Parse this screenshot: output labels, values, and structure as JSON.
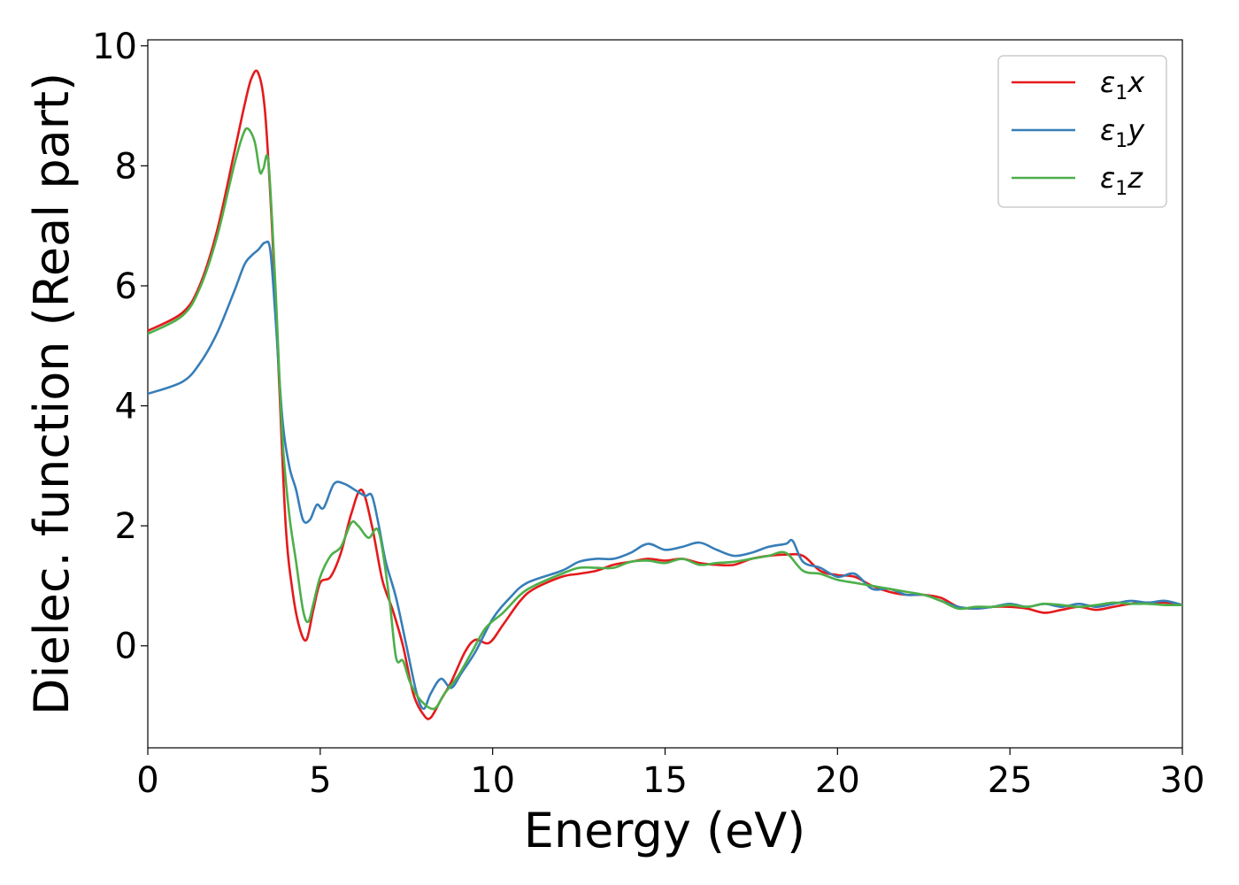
{
  "chart_data": {
    "type": "line",
    "xlabel": "Energy (eV)",
    "ylabel": "Dielec. function (Real part)",
    "xlim": [
      0,
      30
    ],
    "ylim": [
      -1.7,
      10.1
    ],
    "xticks": [
      0,
      5,
      10,
      15,
      20,
      25,
      30
    ],
    "yticks": [
      0,
      2,
      4,
      6,
      8,
      10
    ],
    "grid": false,
    "legend_position": "top-right",
    "series": [
      {
        "name": "ε1x",
        "sym": "ε",
        "sub": "1",
        "axis": "x",
        "color": "#e41a1c",
        "x": [
          0,
          1,
          1.5,
          2,
          2.5,
          2.8,
          3.0,
          3.2,
          3.4,
          3.6,
          3.8,
          4.0,
          4.2,
          4.4,
          4.6,
          4.8,
          5.0,
          5.3,
          5.6,
          5.9,
          6.2,
          6.5,
          6.8,
          7.1,
          7.4,
          7.7,
          8.0,
          8.2,
          8.5,
          8.8,
          9.2,
          9.5,
          9.9,
          10.3,
          10.8,
          11.2,
          12,
          12.5,
          13,
          13.5,
          14,
          14.5,
          15,
          15.5,
          16,
          16.5,
          17,
          17.5,
          18,
          18.5,
          19,
          19.5,
          20,
          20.5,
          21,
          21.5,
          22,
          22.5,
          23,
          23.5,
          24,
          24.5,
          25,
          25.5,
          26,
          26.5,
          27,
          27.5,
          28,
          28.5,
          29,
          29.5,
          30
        ],
        "y": [
          5.25,
          5.55,
          6.0,
          6.9,
          8.2,
          9.0,
          9.45,
          9.55,
          8.9,
          7.0,
          4.5,
          2.0,
          0.9,
          0.3,
          0.1,
          0.6,
          1.05,
          1.15,
          1.55,
          2.2,
          2.6,
          2.0,
          1.1,
          0.6,
          0.0,
          -0.8,
          -1.15,
          -1.2,
          -0.9,
          -0.6,
          -0.1,
          0.1,
          0.05,
          0.35,
          0.75,
          0.95,
          1.15,
          1.2,
          1.25,
          1.35,
          1.4,
          1.45,
          1.42,
          1.45,
          1.38,
          1.35,
          1.35,
          1.45,
          1.5,
          1.52,
          1.5,
          1.25,
          1.18,
          1.15,
          1.0,
          0.9,
          0.85,
          0.85,
          0.8,
          0.65,
          0.62,
          0.65,
          0.65,
          0.62,
          0.55,
          0.6,
          0.65,
          0.6,
          0.65,
          0.7,
          0.72,
          0.72,
          0.68
        ]
      },
      {
        "name": "ε1y",
        "sym": "ε",
        "sub": "1",
        "axis": "y",
        "color": "#377eb8",
        "x": [
          0,
          1,
          1.5,
          2,
          2.5,
          2.8,
          3.0,
          3.2,
          3.4,
          3.55,
          3.7,
          3.9,
          4.1,
          4.3,
          4.5,
          4.7,
          4.9,
          5.1,
          5.4,
          5.7,
          6.0,
          6.3,
          6.5,
          6.7,
          6.9,
          7.2,
          7.5,
          7.8,
          8.0,
          8.2,
          8.5,
          8.8,
          9.1,
          9.5,
          10,
          10.5,
          11,
          12,
          12.5,
          13,
          13.5,
          14,
          14.5,
          15,
          15.5,
          16,
          16.5,
          17,
          17.5,
          18,
          18.5,
          18.7,
          19,
          19.5,
          20,
          20.5,
          21,
          21.5,
          22,
          22.5,
          23,
          23.5,
          24,
          24.5,
          25,
          25.5,
          26,
          26.5,
          27,
          27.5,
          28,
          28.5,
          29,
          29.5,
          30
        ],
        "y": [
          4.2,
          4.4,
          4.7,
          5.2,
          5.9,
          6.35,
          6.5,
          6.6,
          6.72,
          6.6,
          5.5,
          3.8,
          3.0,
          2.6,
          2.1,
          2.1,
          2.35,
          2.3,
          2.7,
          2.7,
          2.6,
          2.5,
          2.5,
          2.0,
          1.4,
          0.8,
          0.0,
          -0.8,
          -1.05,
          -0.8,
          -0.55,
          -0.7,
          -0.45,
          -0.1,
          0.45,
          0.8,
          1.05,
          1.25,
          1.4,
          1.45,
          1.45,
          1.55,
          1.7,
          1.6,
          1.65,
          1.72,
          1.6,
          1.5,
          1.55,
          1.65,
          1.7,
          1.75,
          1.4,
          1.3,
          1.15,
          1.2,
          0.95,
          0.95,
          0.85,
          0.85,
          0.75,
          0.65,
          0.62,
          0.65,
          0.7,
          0.65,
          0.7,
          0.65,
          0.7,
          0.65,
          0.7,
          0.75,
          0.72,
          0.75,
          0.68
        ]
      },
      {
        "name": "ε1z",
        "sym": "ε",
        "sub": "1",
        "axis": "z",
        "color": "#4daf4a",
        "x": [
          0,
          1,
          1.5,
          2,
          2.5,
          2.75,
          2.9,
          3.1,
          3.25,
          3.35,
          3.5,
          3.7,
          3.9,
          4.1,
          4.3,
          4.5,
          4.65,
          4.8,
          5.0,
          5.3,
          5.6,
          5.9,
          6.1,
          6.4,
          6.7,
          7.0,
          7.2,
          7.4,
          7.6,
          7.9,
          8.3,
          8.6,
          9.0,
          9.4,
          9.8,
          10.3,
          10.8,
          11.2,
          12,
          12.5,
          13,
          13.5,
          14,
          14.5,
          15,
          15.5,
          16,
          16.5,
          17,
          17.5,
          18,
          18.5,
          19,
          19.5,
          20,
          20.5,
          21,
          21.5,
          22,
          22.5,
          23,
          23.5,
          24,
          24.5,
          25,
          25.5,
          26,
          26.5,
          27,
          27.5,
          28,
          28.5,
          29,
          29.5,
          30
        ],
        "y": [
          5.2,
          5.5,
          5.95,
          6.8,
          8.0,
          8.5,
          8.62,
          8.4,
          7.9,
          7.95,
          8.05,
          6.0,
          3.5,
          2.2,
          1.4,
          0.6,
          0.4,
          0.7,
          1.15,
          1.5,
          1.65,
          2.05,
          2.0,
          1.8,
          1.9,
          0.8,
          -0.2,
          -0.25,
          -0.6,
          -0.9,
          -1.05,
          -0.8,
          -0.5,
          -0.1,
          0.3,
          0.55,
          0.85,
          1.0,
          1.2,
          1.3,
          1.3,
          1.3,
          1.4,
          1.42,
          1.38,
          1.45,
          1.35,
          1.38,
          1.4,
          1.45,
          1.5,
          1.55,
          1.25,
          1.2,
          1.1,
          1.05,
          1.0,
          0.95,
          0.9,
          0.85,
          0.75,
          0.62,
          0.65,
          0.65,
          0.68,
          0.65,
          0.7,
          0.68,
          0.65,
          0.68,
          0.72,
          0.7,
          0.7,
          0.68,
          0.68
        ]
      }
    ]
  }
}
